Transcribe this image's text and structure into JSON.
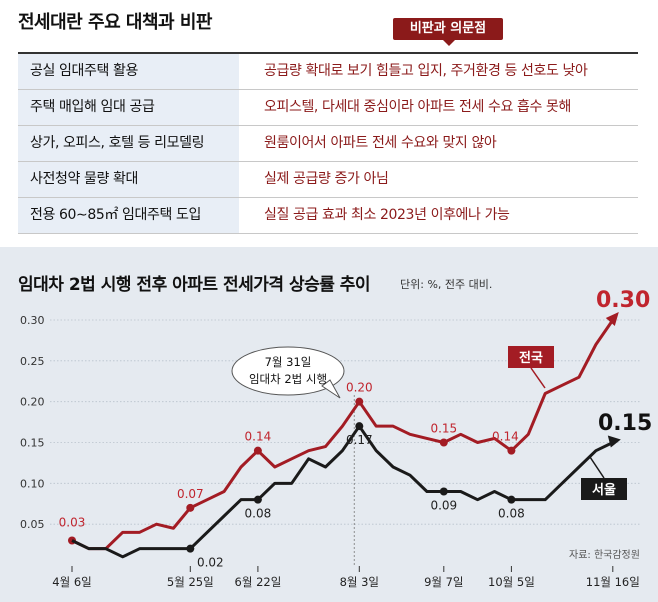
{
  "header": {
    "title": "전세대란 주요 대책과 비판",
    "badge": "비판과 의문점"
  },
  "policies": [
    {
      "policy": "공실 임대주택 활용",
      "critique": "공급량 확대로 보기 힘들고 입지, 주거환경 등 선호도 낮아"
    },
    {
      "policy": "주택 매입해 임대 공급",
      "critique": "오피스텔, 다세대 중심이라 아파트 전세 수요 흡수 못해"
    },
    {
      "policy": "상가, 오피스, 호텔 등 리모델링",
      "critique": "원룸이어서 아파트 전세 수요와 맞지 않아"
    },
    {
      "policy": "사전청약 물량 확대",
      "critique": "실제 공급량 증가 아님"
    },
    {
      "policy": "전용 60∼85㎡ 임대주택 도입",
      "critique": "실질 공급 효과 최소 2023년 이후에나 가능"
    }
  ],
  "chart_info": {
    "title": "임대차 2법 시행 전후 아파트 전세가격 상승률 추이",
    "unit": "단위: %, 전주 대비.",
    "source": "자료: 한국감정원",
    "annotation": [
      "7월 31일",
      "임대차 2법 시행"
    ]
  },
  "chart_data": {
    "type": "line",
    "ylim": [
      0,
      0.3
    ],
    "yticks": [
      "0.30",
      "0.25",
      "0.20",
      "0.15",
      "0.10",
      "0.05"
    ],
    "x_labels": [
      {
        "week": 0,
        "label": "4월 6일"
      },
      {
        "week": 7,
        "label": "5월 25일"
      },
      {
        "week": 11,
        "label": "6월 22일"
      },
      {
        "week": 17,
        "label": "8월 3일"
      },
      {
        "week": 22,
        "label": "9월 7일"
      },
      {
        "week": 26,
        "label": "10월 5일"
      },
      {
        "week": 32,
        "label": "11월 16일"
      }
    ],
    "series": [
      {
        "name": "전국",
        "color": "#a31c24",
        "values": [
          0.03,
          0.02,
          0.02,
          0.04,
          0.04,
          0.05,
          0.045,
          0.07,
          0.08,
          0.09,
          0.12,
          0.14,
          0.12,
          0.13,
          0.14,
          0.145,
          0.17,
          0.2,
          0.17,
          0.17,
          0.16,
          0.155,
          0.15,
          0.16,
          0.15,
          0.155,
          0.14,
          0.16,
          0.21,
          0.22,
          0.23,
          0.27,
          0.3
        ],
        "labels": [
          {
            "index": 0,
            "text": "0.03"
          },
          {
            "index": 7,
            "text": "0.07"
          },
          {
            "index": 11,
            "text": "0.14"
          },
          {
            "index": 17,
            "text": "0.20"
          },
          {
            "index": 22,
            "text": "0.15"
          },
          {
            "index": 26,
            "text": "0.14"
          }
        ],
        "end_label": "0.30"
      },
      {
        "name": "서울",
        "color": "#1a1a1a",
        "values": [
          0.03,
          0.02,
          0.02,
          0.01,
          0.02,
          0.02,
          0.02,
          0.02,
          0.04,
          0.06,
          0.08,
          0.08,
          0.1,
          0.1,
          0.13,
          0.12,
          0.14,
          0.17,
          0.14,
          0.12,
          0.11,
          0.09,
          0.09,
          0.09,
          0.08,
          0.09,
          0.08,
          0.08,
          0.08,
          0.1,
          0.12,
          0.14,
          0.15
        ],
        "labels": [
          {
            "index": 7,
            "text": "0.02"
          },
          {
            "index": 11,
            "text": "0.08"
          },
          {
            "index": 17,
            "text": "0.17"
          },
          {
            "index": 22,
            "text": "0.09"
          },
          {
            "index": 26,
            "text": "0.08"
          }
        ],
        "end_label": "0.15"
      }
    ]
  }
}
